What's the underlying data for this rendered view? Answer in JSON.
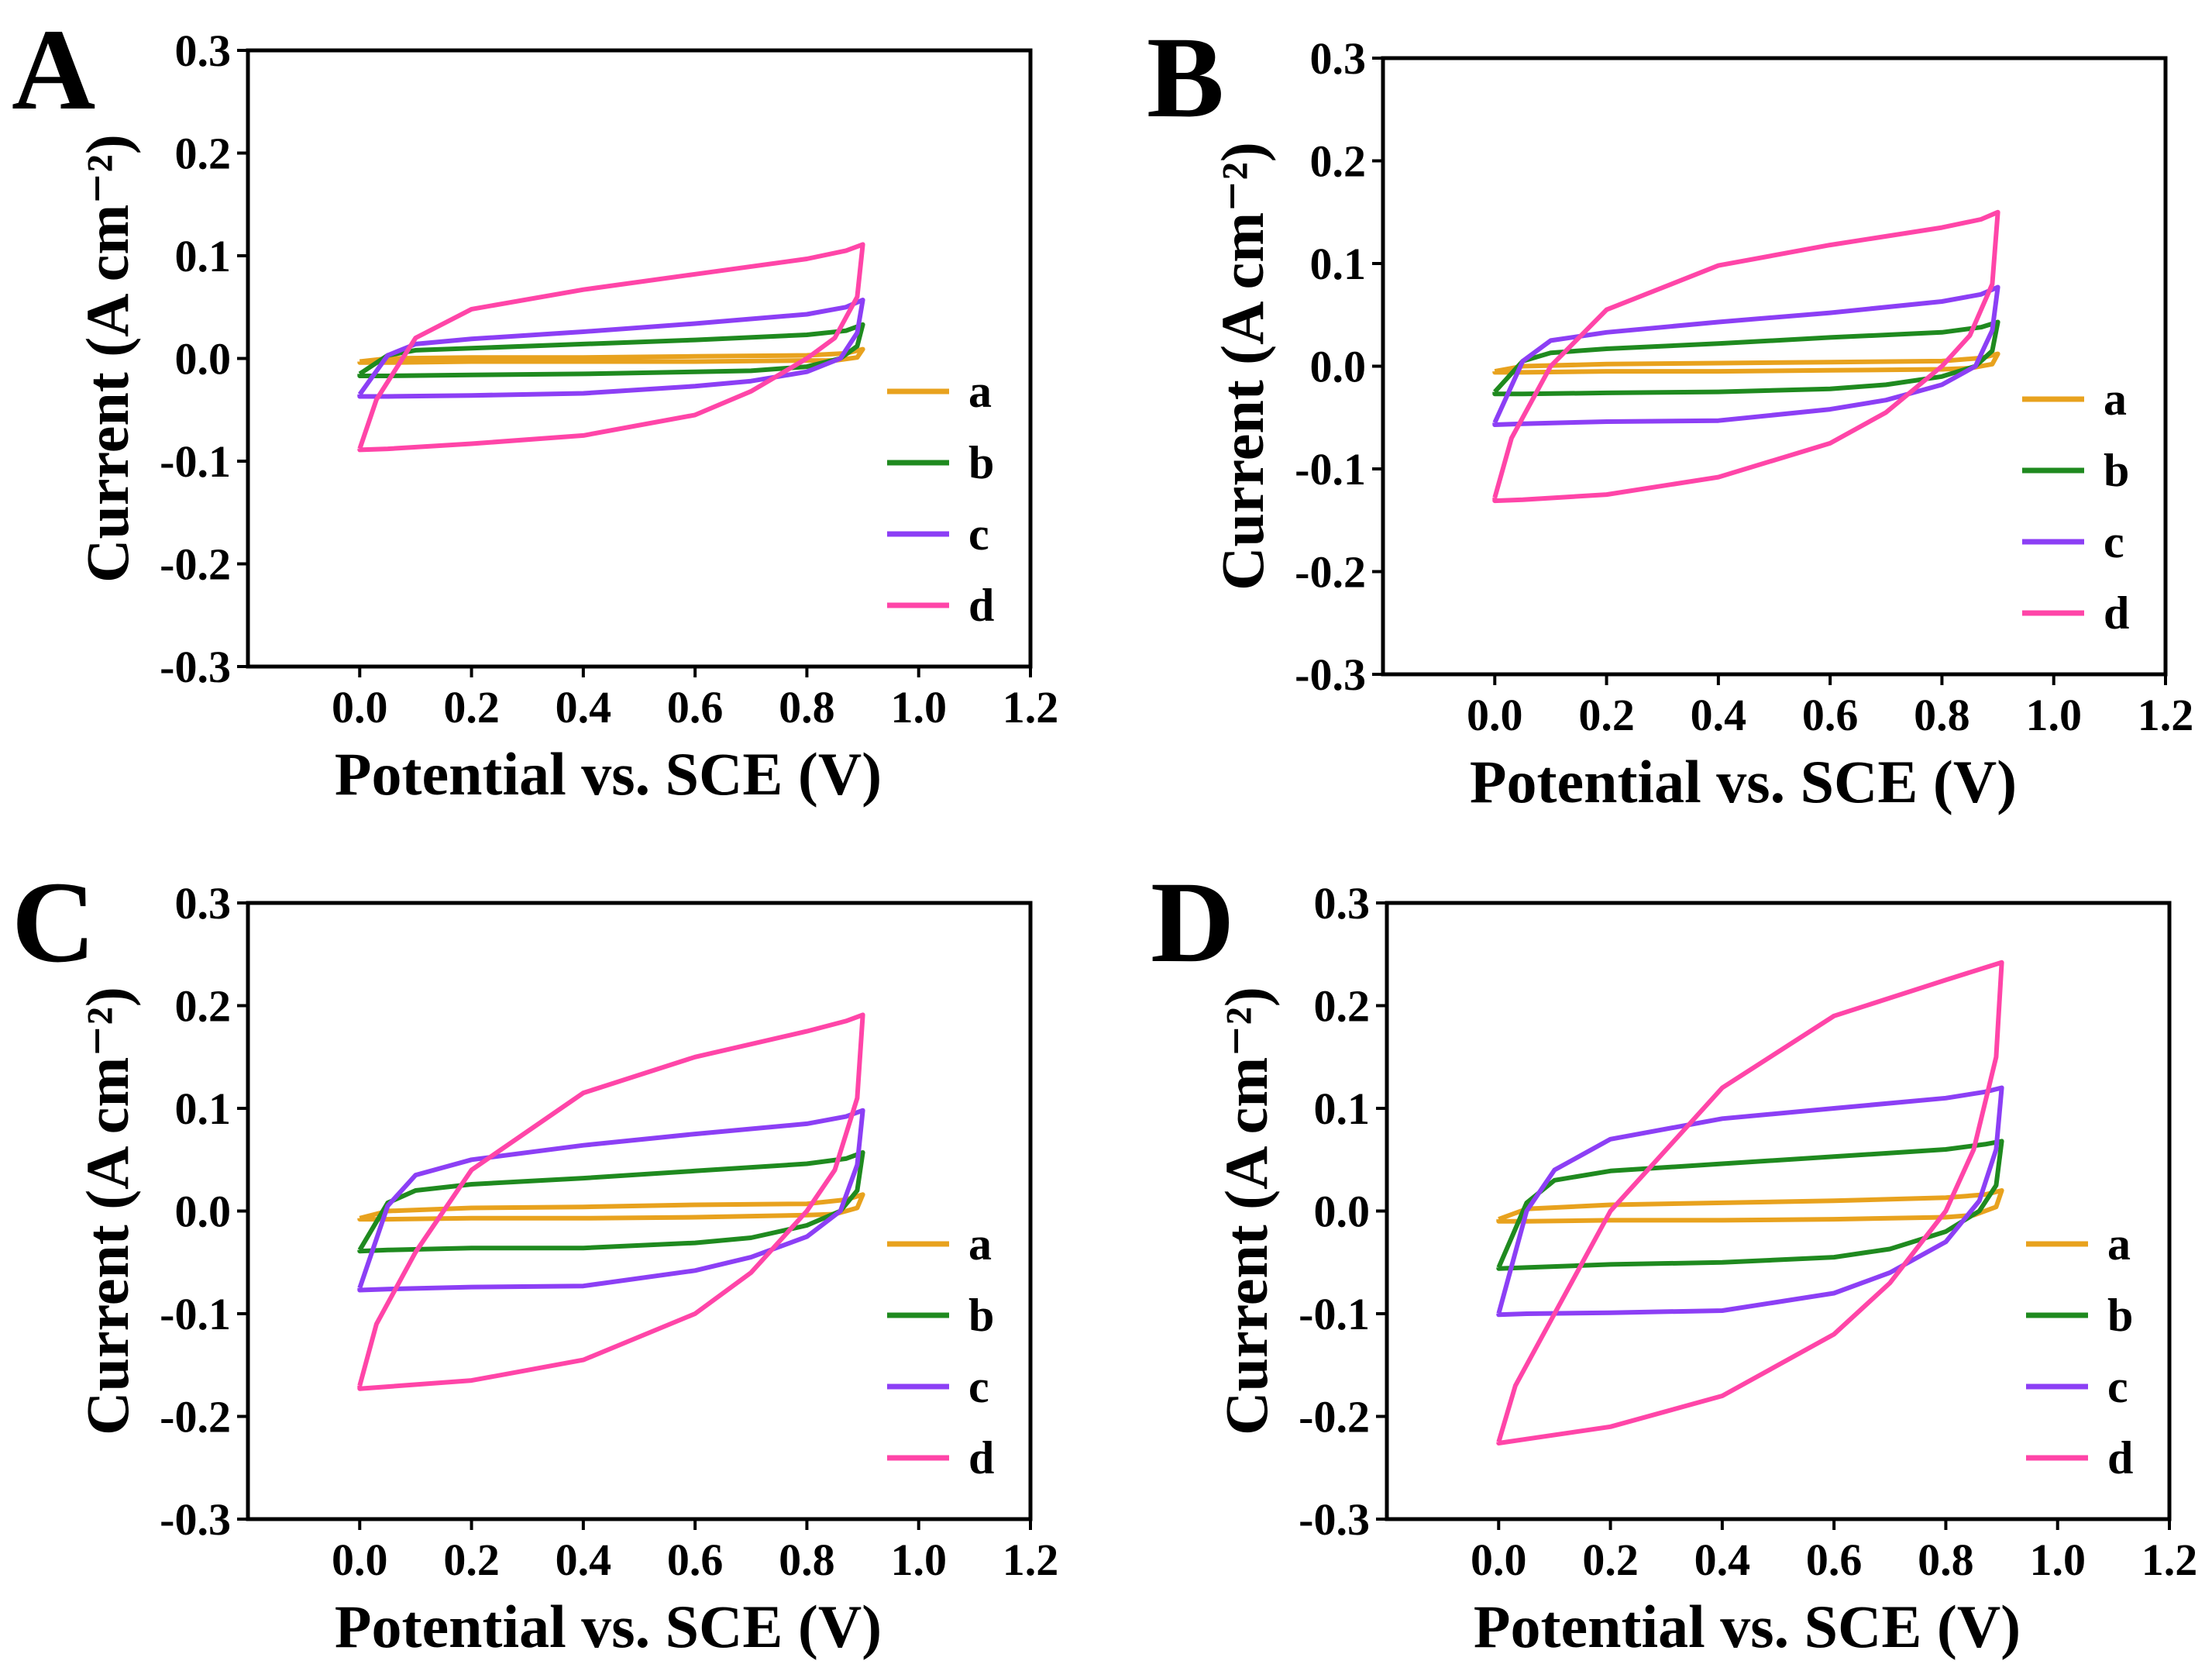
{
  "chart_data": [
    {
      "panel": "A",
      "type": "line",
      "xlabel": "Potential vs. SCE (V)",
      "ylabel": "Current (A cm⁻²)",
      "xlim": [
        -0.2,
        1.2
      ],
      "ylim": [
        -0.3,
        0.3
      ],
      "xticks": [
        "0.0",
        "0.2",
        "0.4",
        "0.6",
        "0.8",
        "1.0",
        "1.2"
      ],
      "yticks": [
        "0.3",
        "0.2",
        "0.1",
        "0.0",
        "-0.1",
        "-0.2",
        "-0.3"
      ],
      "legend_position": "right",
      "series": [
        {
          "name": "a",
          "color": "#e8a21e",
          "x": [
            0,
            0.05,
            0.2,
            0.4,
            0.6,
            0.8,
            0.87,
            0.9,
            0.89,
            0.85,
            0.8,
            0.6,
            0.4,
            0.2,
            0.05,
            0,
            0
          ],
          "y": [
            -0.003,
            0.0,
            0.001,
            0.001,
            0.002,
            0.003,
            0.005,
            0.009,
            0.001,
            -0.002,
            -0.002,
            -0.003,
            -0.003,
            -0.003,
            -0.004,
            -0.004,
            -0.003
          ]
        },
        {
          "name": "b",
          "color": "#1f8a1f",
          "x": [
            0,
            0.05,
            0.1,
            0.2,
            0.4,
            0.6,
            0.8,
            0.87,
            0.9,
            0.89,
            0.86,
            0.8,
            0.7,
            0.6,
            0.4,
            0.2,
            0.05,
            0,
            0
          ],
          "y": [
            -0.015,
            0.003,
            0.008,
            0.01,
            0.014,
            0.018,
            0.023,
            0.027,
            0.033,
            0.012,
            0.0,
            -0.008,
            -0.012,
            -0.013,
            -0.015,
            -0.016,
            -0.017,
            -0.017,
            -0.015
          ]
        },
        {
          "name": "c",
          "color": "#8c3ff5",
          "x": [
            0,
            0.05,
            0.1,
            0.2,
            0.4,
            0.6,
            0.8,
            0.87,
            0.9,
            0.89,
            0.86,
            0.8,
            0.7,
            0.6,
            0.4,
            0.2,
            0.05,
            0,
            0
          ],
          "y": [
            -0.035,
            0.003,
            0.014,
            0.019,
            0.026,
            0.034,
            0.043,
            0.05,
            0.057,
            0.025,
            0.0,
            -0.013,
            -0.022,
            -0.027,
            -0.034,
            -0.036,
            -0.037,
            -0.037,
            -0.035
          ]
        },
        {
          "name": "d",
          "color": "#ff45a8",
          "x": [
            0,
            0.03,
            0.1,
            0.2,
            0.4,
            0.6,
            0.8,
            0.87,
            0.9,
            0.89,
            0.85,
            0.8,
            0.7,
            0.6,
            0.4,
            0.2,
            0.05,
            0,
            0
          ],
          "y": [
            -0.088,
            -0.04,
            0.02,
            0.048,
            0.067,
            0.082,
            0.097,
            0.105,
            0.111,
            0.06,
            0.02,
            0.0,
            -0.032,
            -0.055,
            -0.075,
            -0.083,
            -0.088,
            -0.089,
            -0.088
          ]
        }
      ]
    },
    {
      "panel": "B",
      "type": "line",
      "xlabel": "Potential vs. SCE (V)",
      "ylabel": "Current (A cm⁻²)",
      "xlim": [
        -0.2,
        1.2
      ],
      "ylim": [
        -0.3,
        0.3
      ],
      "xticks": [
        "0.0",
        "0.2",
        "0.4",
        "0.6",
        "0.8",
        "1.0",
        "1.2"
      ],
      "yticks": [
        "0.3",
        "0.2",
        "0.1",
        "0.0",
        "-0.1",
        "-0.2",
        "-0.3"
      ],
      "legend_position": "right",
      "series": [
        {
          "name": "a",
          "color": "#e8a21e",
          "x": [
            0,
            0.05,
            0.2,
            0.4,
            0.6,
            0.8,
            0.87,
            0.9,
            0.89,
            0.85,
            0.8,
            0.6,
            0.4,
            0.2,
            0.05,
            0,
            0
          ],
          "y": [
            -0.005,
            0.0,
            0.002,
            0.003,
            0.004,
            0.005,
            0.008,
            0.012,
            0.002,
            -0.002,
            -0.003,
            -0.004,
            -0.005,
            -0.005,
            -0.006,
            -0.006,
            -0.005
          ]
        },
        {
          "name": "b",
          "color": "#1f8a1f",
          "x": [
            0,
            0.05,
            0.1,
            0.2,
            0.4,
            0.6,
            0.8,
            0.87,
            0.9,
            0.89,
            0.86,
            0.8,
            0.7,
            0.6,
            0.4,
            0.2,
            0.05,
            0,
            0
          ],
          "y": [
            -0.025,
            0.005,
            0.013,
            0.017,
            0.022,
            0.028,
            0.033,
            0.038,
            0.043,
            0.015,
            0.0,
            -0.01,
            -0.018,
            -0.022,
            -0.025,
            -0.026,
            -0.027,
            -0.027,
            -0.025
          ]
        },
        {
          "name": "c",
          "color": "#8c3ff5",
          "x": [
            0,
            0.05,
            0.1,
            0.2,
            0.4,
            0.6,
            0.8,
            0.87,
            0.9,
            0.89,
            0.86,
            0.8,
            0.7,
            0.6,
            0.4,
            0.2,
            0.05,
            0,
            0
          ],
          "y": [
            -0.055,
            0.005,
            0.025,
            0.033,
            0.043,
            0.052,
            0.063,
            0.07,
            0.077,
            0.035,
            0.0,
            -0.018,
            -0.033,
            -0.042,
            -0.053,
            -0.054,
            -0.056,
            -0.057,
            -0.055
          ]
        },
        {
          "name": "d",
          "color": "#ff45a8",
          "x": [
            0,
            0.03,
            0.1,
            0.2,
            0.4,
            0.6,
            0.8,
            0.87,
            0.9,
            0.89,
            0.85,
            0.8,
            0.7,
            0.6,
            0.4,
            0.2,
            0.05,
            0,
            0
          ],
          "y": [
            -0.128,
            -0.07,
            0.0,
            0.055,
            0.098,
            0.118,
            0.135,
            0.143,
            0.15,
            0.08,
            0.03,
            0.0,
            -0.045,
            -0.075,
            -0.108,
            -0.125,
            -0.13,
            -0.131,
            -0.128
          ]
        }
      ]
    },
    {
      "panel": "C",
      "type": "line",
      "xlabel": "Potential vs. SCE (V)",
      "ylabel": "Current (A cm⁻²)",
      "xlim": [
        -0.2,
        1.2
      ],
      "ylim": [
        -0.3,
        0.3
      ],
      "xticks": [
        "0.0",
        "0.2",
        "0.4",
        "0.6",
        "0.8",
        "1.0",
        "1.2"
      ],
      "yticks": [
        "0.3",
        "0.2",
        "0.1",
        "0.0",
        "-0.1",
        "-0.2",
        "-0.3"
      ],
      "legend_position": "right",
      "series": [
        {
          "name": "a",
          "color": "#e8a21e",
          "x": [
            0,
            0.05,
            0.2,
            0.4,
            0.6,
            0.8,
            0.87,
            0.9,
            0.89,
            0.85,
            0.8,
            0.6,
            0.4,
            0.2,
            0.05,
            0,
            0
          ],
          "y": [
            -0.007,
            0.0,
            0.003,
            0.004,
            0.006,
            0.007,
            0.011,
            0.016,
            0.003,
            -0.003,
            -0.004,
            -0.006,
            -0.007,
            -0.007,
            -0.008,
            -0.008,
            -0.007
          ]
        },
        {
          "name": "b",
          "color": "#1f8a1f",
          "x": [
            0,
            0.05,
            0.1,
            0.2,
            0.4,
            0.6,
            0.8,
            0.87,
            0.9,
            0.89,
            0.86,
            0.8,
            0.7,
            0.6,
            0.4,
            0.2,
            0.05,
            0,
            0
          ],
          "y": [
            -0.038,
            0.008,
            0.02,
            0.026,
            0.032,
            0.039,
            0.046,
            0.051,
            0.057,
            0.02,
            0.0,
            -0.014,
            -0.026,
            -0.031,
            -0.036,
            -0.036,
            -0.038,
            -0.039,
            -0.038
          ]
        },
        {
          "name": "c",
          "color": "#8c3ff5",
          "x": [
            0,
            0.05,
            0.1,
            0.2,
            0.4,
            0.6,
            0.8,
            0.87,
            0.9,
            0.89,
            0.86,
            0.8,
            0.7,
            0.6,
            0.4,
            0.2,
            0.05,
            0,
            0
          ],
          "y": [
            -0.075,
            0.005,
            0.035,
            0.05,
            0.064,
            0.075,
            0.085,
            0.092,
            0.098,
            0.045,
            0.0,
            -0.025,
            -0.045,
            -0.058,
            -0.073,
            -0.074,
            -0.076,
            -0.077,
            -0.075
          ]
        },
        {
          "name": "d",
          "color": "#ff45a8",
          "x": [
            0,
            0.03,
            0.1,
            0.2,
            0.4,
            0.6,
            0.8,
            0.87,
            0.9,
            0.89,
            0.85,
            0.8,
            0.7,
            0.6,
            0.4,
            0.2,
            0.05,
            0,
            0
          ],
          "y": [
            -0.17,
            -0.11,
            -0.04,
            0.04,
            0.115,
            0.15,
            0.175,
            0.185,
            0.191,
            0.11,
            0.04,
            0.0,
            -0.06,
            -0.1,
            -0.145,
            -0.165,
            -0.171,
            -0.173,
            -0.17
          ]
        }
      ]
    },
    {
      "panel": "D",
      "type": "line",
      "xlabel": "Potential vs. SCE (V)",
      "ylabel": "Current (A cm⁻²)",
      "xlim": [
        -0.2,
        1.2
      ],
      "ylim": [
        -0.3,
        0.3
      ],
      "xticks": [
        "0.0",
        "0.2",
        "0.4",
        "0.6",
        "0.8",
        "1.0",
        "1.2"
      ],
      "yticks": [
        "0.3",
        "0.2",
        "0.1",
        "0.0",
        "-0.1",
        "-0.2",
        "-0.3"
      ],
      "legend_position": "right",
      "series": [
        {
          "name": "a",
          "color": "#e8a21e",
          "x": [
            0,
            0.05,
            0.2,
            0.4,
            0.6,
            0.8,
            0.87,
            0.9,
            0.89,
            0.85,
            0.8,
            0.6,
            0.4,
            0.2,
            0.05,
            0,
            0
          ],
          "y": [
            -0.008,
            0.002,
            0.006,
            0.008,
            0.01,
            0.013,
            0.016,
            0.02,
            0.004,
            -0.004,
            -0.006,
            -0.008,
            -0.009,
            -0.009,
            -0.01,
            -0.01,
            -0.008
          ]
        },
        {
          "name": "b",
          "color": "#1f8a1f",
          "x": [
            0,
            0.05,
            0.1,
            0.2,
            0.4,
            0.6,
            0.8,
            0.87,
            0.9,
            0.89,
            0.86,
            0.8,
            0.7,
            0.6,
            0.4,
            0.2,
            0.05,
            0,
            0
          ],
          "y": [
            -0.055,
            0.008,
            0.03,
            0.039,
            0.046,
            0.053,
            0.06,
            0.065,
            0.068,
            0.025,
            0.0,
            -0.02,
            -0.037,
            -0.045,
            -0.05,
            -0.052,
            -0.055,
            -0.056,
            -0.055
          ]
        },
        {
          "name": "c",
          "color": "#8c3ff5",
          "x": [
            0,
            0.05,
            0.1,
            0.2,
            0.4,
            0.6,
            0.8,
            0.87,
            0.9,
            0.89,
            0.86,
            0.8,
            0.7,
            0.6,
            0.4,
            0.2,
            0.05,
            0,
            0
          ],
          "y": [
            -0.1,
            0.0,
            0.04,
            0.07,
            0.09,
            0.1,
            0.11,
            0.116,
            0.12,
            0.06,
            0.01,
            -0.03,
            -0.06,
            -0.08,
            -0.097,
            -0.099,
            -0.1,
            -0.101,
            -0.1
          ]
        },
        {
          "name": "d",
          "color": "#ff45a8",
          "x": [
            0,
            0.03,
            0.1,
            0.2,
            0.4,
            0.6,
            0.8,
            0.87,
            0.9,
            0.89,
            0.85,
            0.8,
            0.7,
            0.6,
            0.4,
            0.2,
            0.05,
            0,
            0
          ],
          "y": [
            -0.225,
            -0.17,
            -0.1,
            0.0,
            0.12,
            0.19,
            0.225,
            0.237,
            0.242,
            0.15,
            0.06,
            0.0,
            -0.07,
            -0.12,
            -0.18,
            -0.21,
            -0.222,
            -0.226,
            -0.225
          ]
        }
      ]
    }
  ]
}
